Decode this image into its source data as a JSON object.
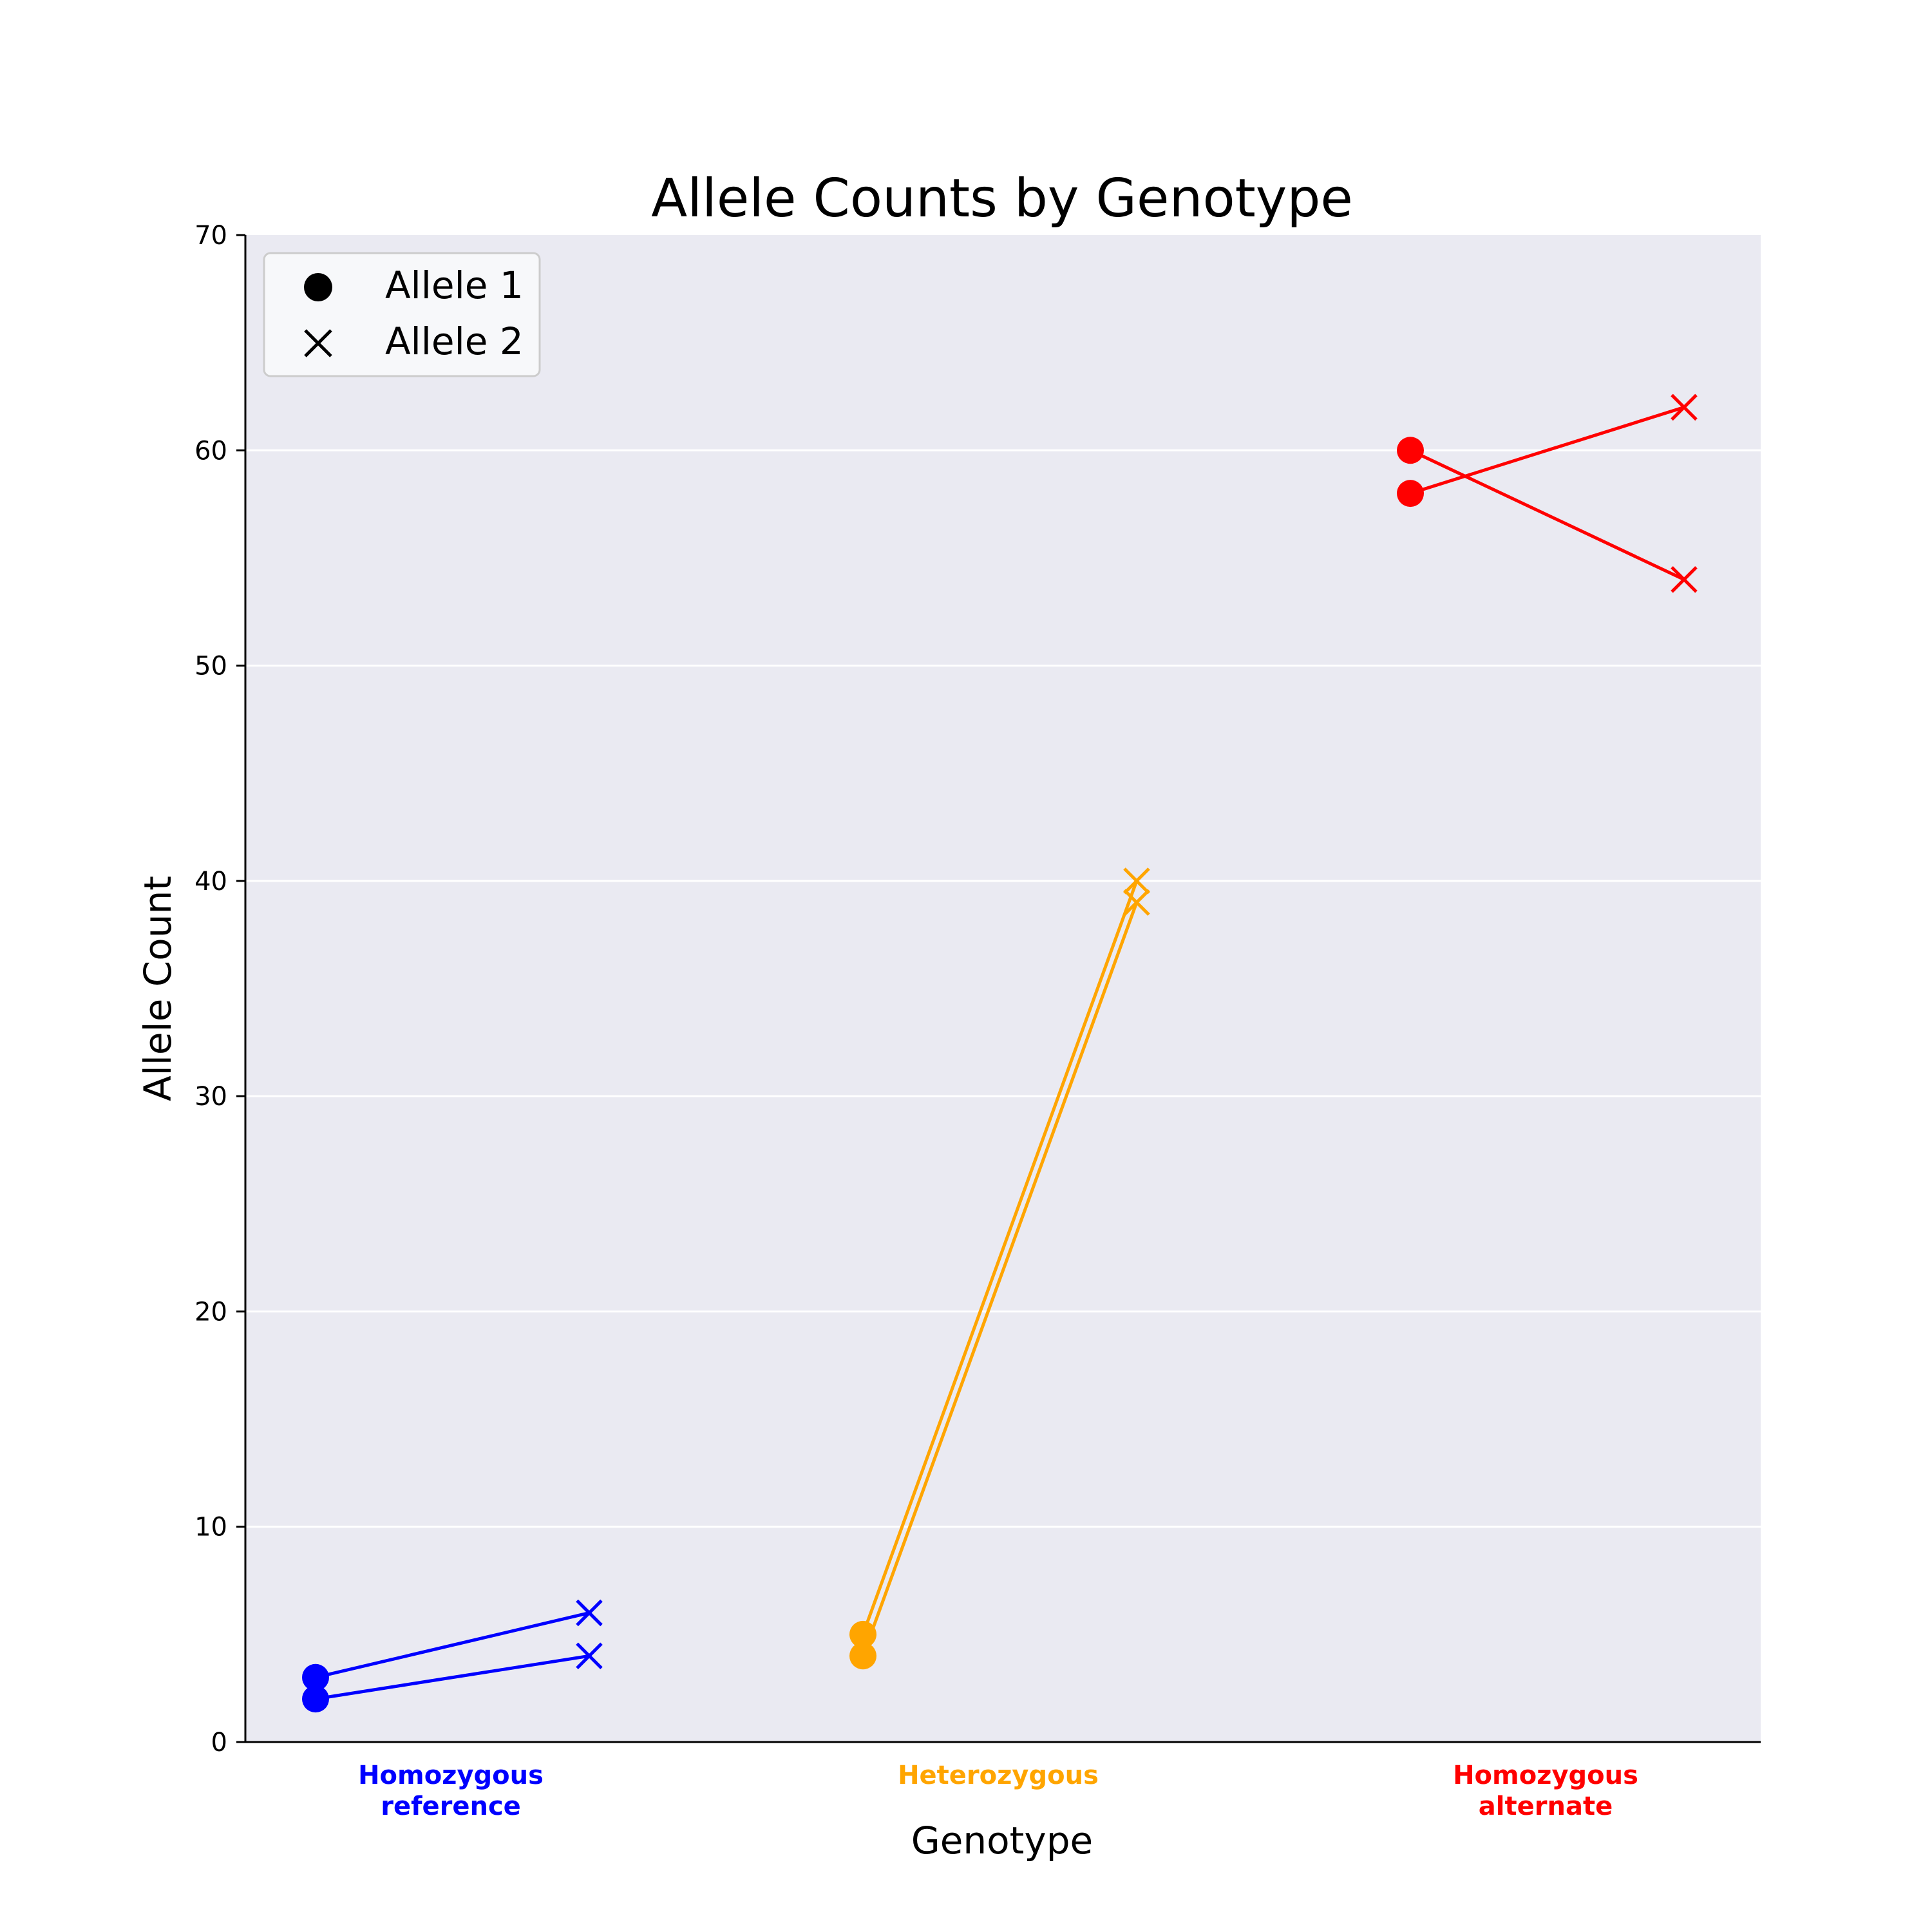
{
  "chart_data": {
    "type": "line",
    "title": "Allele Counts by Genotype",
    "xlabel": "Genotype",
    "ylabel": "Allele Count",
    "ylim": [
      0,
      70
    ],
    "yticks": [
      0,
      10,
      20,
      30,
      40,
      50,
      60,
      70
    ],
    "grid": "horizontal",
    "legend": {
      "placement": "top-left",
      "entries": [
        {
          "label": "Allele 1",
          "marker": "circle"
        },
        {
          "label": "Allele 2",
          "marker": "x"
        }
      ]
    },
    "categories": [
      {
        "lines": [
          "Homozygous",
          "reference"
        ],
        "color": "#0000ff"
      },
      {
        "lines": [
          "Heterozygous"
        ],
        "color": "#ffa500"
      },
      {
        "lines": [
          "Homozygous",
          "alternate"
        ],
        "color": "#ff0000"
      }
    ],
    "pairs": [
      {
        "category": 0,
        "allele1": 3,
        "allele2": 6
      },
      {
        "category": 0,
        "allele1": 2,
        "allele2": 4
      },
      {
        "category": 1,
        "allele1": 5,
        "allele2": 40
      },
      {
        "category": 1,
        "allele1": 4,
        "allele2": 39
      },
      {
        "category": 2,
        "allele1": 60,
        "allele2": 54
      },
      {
        "category": 2,
        "allele1": 58,
        "allele2": 62
      }
    ]
  }
}
